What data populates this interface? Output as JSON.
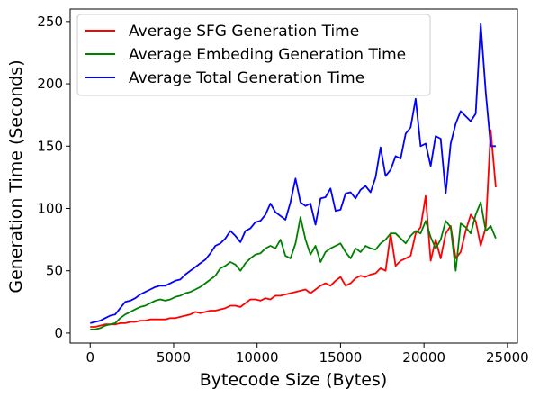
{
  "chart_data": {
    "type": "line",
    "xlabel": "Bytecode Size (Bytes)",
    "ylabel": "Generation Time (Seconds)",
    "xlim": [
      -1200,
      25600
    ],
    "ylim": [
      -8,
      260
    ],
    "xticks": [
      0,
      5000,
      10000,
      15000,
      20000,
      25000
    ],
    "yticks": [
      0,
      50,
      100,
      150,
      200,
      250
    ],
    "xtick_labels": [
      "0",
      "5000",
      "10000",
      "15000",
      "20000",
      "25000"
    ],
    "ytick_labels": [
      "0",
      "50",
      "100",
      "150",
      "200",
      "250"
    ],
    "grid": false,
    "legend_position": "top-left",
    "x": [
      0,
      300,
      600,
      900,
      1200,
      1500,
      1800,
      2100,
      2400,
      2700,
      3000,
      3300,
      3600,
      3900,
      4200,
      4500,
      4800,
      5100,
      5400,
      5700,
      6000,
      6300,
      6600,
      6900,
      7200,
      7500,
      7800,
      8100,
      8400,
      8700,
      9000,
      9300,
      9600,
      9900,
      10200,
      10500,
      10800,
      11100,
      11400,
      11700,
      12000,
      12300,
      12600,
      12900,
      13200,
      13500,
      13800,
      14100,
      14400,
      14700,
      15000,
      15300,
      15600,
      15900,
      16200,
      16500,
      16800,
      17100,
      17400,
      17700,
      18000,
      18300,
      18600,
      18900,
      19200,
      19500,
      19800,
      20100,
      20400,
      20700,
      21000,
      21300,
      21600,
      21900,
      22200,
      22500,
      22800,
      23100,
      23400,
      23700,
      24000,
      24300
    ],
    "series": [
      {
        "name": "Average SFG Generation Time",
        "color": "#ff0000",
        "values": [
          5,
          5,
          6,
          7,
          7,
          7,
          8,
          8,
          9,
          9,
          10,
          10,
          11,
          11,
          11,
          11,
          12,
          12,
          13,
          14,
          15,
          17,
          16,
          17,
          18,
          18,
          19,
          20,
          22,
          22,
          21,
          24,
          27,
          27,
          26,
          28,
          27,
          30,
          30,
          31,
          32,
          33,
          34,
          35,
          32,
          35,
          38,
          40,
          38,
          42,
          45,
          38,
          40,
          44,
          46,
          45,
          47,
          48,
          52,
          50,
          80,
          54,
          58,
          60,
          62,
          80,
          85,
          110,
          58,
          75,
          60,
          80,
          86,
          60,
          65,
          82,
          95,
          90,
          70,
          85,
          163,
          117
        ]
      },
      {
        "name": "Average Embeding Generation Time",
        "color": "#008000",
        "values": [
          3,
          3,
          4,
          6,
          7,
          8,
          12,
          15,
          17,
          19,
          21,
          22,
          24,
          26,
          27,
          26,
          27,
          29,
          30,
          32,
          33,
          35,
          37,
          40,
          43,
          46,
          52,
          54,
          57,
          55,
          50,
          56,
          60,
          63,
          64,
          68,
          70,
          68,
          75,
          62,
          60,
          72,
          93,
          75,
          63,
          70,
          57,
          65,
          68,
          70,
          72,
          65,
          60,
          68,
          65,
          70,
          68,
          67,
          72,
          75,
          80,
          80,
          76,
          72,
          78,
          82,
          80,
          90,
          77,
          68,
          75,
          90,
          85,
          50,
          88,
          85,
          80,
          95,
          105,
          82,
          86,
          76
        ]
      },
      {
        "name": "Average Total Generation Time",
        "color": "#0000ff",
        "values": [
          8,
          9,
          10,
          12,
          14,
          15,
          20,
          25,
          26,
          28,
          31,
          33,
          35,
          37,
          38,
          38,
          40,
          42,
          43,
          47,
          50,
          53,
          56,
          59,
          64,
          70,
          72,
          76,
          82,
          78,
          73,
          82,
          84,
          89,
          90,
          95,
          104,
          97,
          94,
          91,
          105,
          124,
          105,
          102,
          104,
          87,
          108,
          109,
          116,
          98,
          99,
          112,
          113,
          108,
          115,
          118,
          113,
          125,
          149,
          126,
          131,
          142,
          140,
          160,
          165,
          188,
          150,
          152,
          134,
          158,
          156,
          112,
          152,
          168,
          178,
          174,
          170,
          176,
          248,
          193,
          150,
          150
        ]
      }
    ]
  }
}
